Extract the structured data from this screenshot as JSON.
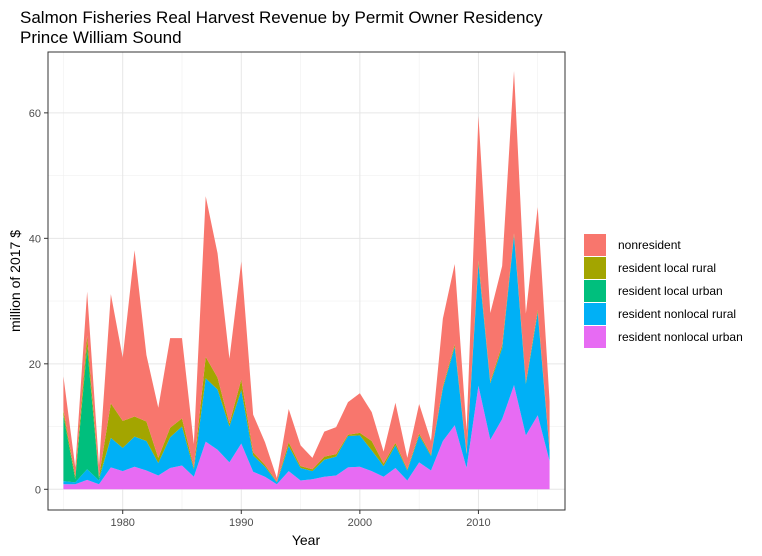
{
  "chart_data": {
    "type": "area",
    "stacked": true,
    "title": "Salmon Fisheries Real Harvest Revenue by Permit Owner Residency",
    "subtitle": "Prince William Sound",
    "xlabel": "Year",
    "ylabel": "million of 2017 $",
    "xlim": [
      1973.7,
      2017.3
    ],
    "ylim": [
      -3.3,
      69.7
    ],
    "x_ticks": [
      1980,
      1990,
      2000,
      2010
    ],
    "y_ticks": [
      0,
      20,
      40,
      60
    ],
    "grid": true,
    "legend_position": "right",
    "x": [
      1975,
      1976,
      1977,
      1978,
      1979,
      1980,
      1981,
      1982,
      1983,
      1984,
      1985,
      1986,
      1987,
      1988,
      1989,
      1990,
      1991,
      1992,
      1993,
      1994,
      1995,
      1996,
      1997,
      1998,
      1999,
      2000,
      2001,
      2002,
      2003,
      2004,
      2005,
      2006,
      2007,
      2008,
      2009,
      2010,
      2011,
      2012,
      2013,
      2014,
      2015,
      2016
    ],
    "series": [
      {
        "name": "resident nonlocal urban",
        "color": "#E76BF3",
        "values": [
          0.8,
          0.8,
          1.5,
          0.8,
          3.5,
          2.9,
          3.6,
          3.0,
          2.2,
          3.4,
          3.8,
          2.0,
          7.6,
          6.3,
          4.3,
          7.3,
          2.8,
          2.0,
          0.8,
          2.9,
          1.4,
          1.6,
          2.0,
          2.2,
          3.5,
          3.6,
          2.9,
          2.0,
          3.4,
          1.4,
          4.3,
          3.0,
          7.7,
          10.2,
          3.4,
          16.5,
          7.9,
          11.2,
          16.6,
          8.6,
          11.8,
          4.5
        ]
      },
      {
        "name": "resident nonlocal rural",
        "color": "#00B0F6",
        "values": [
          0.5,
          0.3,
          1.7,
          0.6,
          4.7,
          3.7,
          4.8,
          4.7,
          2.0,
          4.9,
          6.2,
          1.2,
          10.1,
          9.6,
          5.7,
          8.5,
          2.6,
          1.6,
          0.3,
          4.0,
          2.0,
          1.3,
          2.7,
          3.0,
          5.0,
          5.0,
          3.3,
          1.7,
          3.6,
          1.6,
          4.3,
          2.3,
          8.4,
          12.5,
          2.2,
          19.5,
          9.0,
          11.3,
          23.9,
          8.2,
          16.4,
          1.6
        ]
      },
      {
        "name": "resident local urban",
        "color": "#00BF7D",
        "values": [
          10.5,
          0.5,
          19.5,
          0.4,
          0.0,
          0.0,
          0.0,
          0.0,
          0.0,
          0.0,
          0.0,
          0.0,
          0.0,
          0.0,
          0.0,
          0.0,
          0.0,
          0.0,
          0.0,
          0.0,
          0.0,
          0.0,
          0.0,
          0.0,
          0.0,
          0.0,
          0.0,
          0.0,
          0.0,
          0.0,
          0.0,
          0.0,
          0.0,
          0.0,
          0.0,
          0.0,
          0.0,
          0.0,
          0.0,
          0.0,
          0.0,
          0.0
        ]
      },
      {
        "name": "resident local rural",
        "color": "#A3A500",
        "values": [
          0.8,
          0.4,
          1.8,
          0.2,
          5.5,
          4.3,
          3.2,
          3.1,
          0.8,
          1.5,
          1.3,
          0.3,
          3.4,
          1.9,
          0.5,
          1.7,
          0.5,
          0.3,
          0.1,
          0.6,
          0.3,
          0.3,
          0.5,
          0.4,
          0.2,
          0.4,
          1.5,
          0.4,
          0.4,
          0.2,
          0.3,
          0.2,
          0.3,
          0.4,
          0.2,
          0.5,
          0.3,
          0.5,
          0.3,
          0.3,
          0.4,
          0.2
        ]
      },
      {
        "name": "nonresident",
        "color": "#F8766D",
        "values": [
          5.4,
          1.5,
          7.0,
          1.8,
          17.4,
          10.1,
          26.5,
          10.6,
          8.0,
          14.3,
          12.8,
          3.7,
          25.6,
          19.8,
          10.3,
          18.8,
          6.0,
          3.6,
          0.6,
          5.3,
          3.3,
          1.8,
          4.0,
          4.3,
          5.2,
          6.3,
          4.6,
          1.9,
          6.4,
          1.8,
          4.7,
          2.2,
          10.8,
          12.8,
          3.6,
          23.0,
          10.9,
          12.6,
          25.9,
          10.9,
          16.4,
          7.7
        ]
      }
    ],
    "legend_order": [
      "nonresident",
      "resident local rural",
      "resident local urban",
      "resident nonlocal rural",
      "resident nonlocal urban"
    ]
  }
}
